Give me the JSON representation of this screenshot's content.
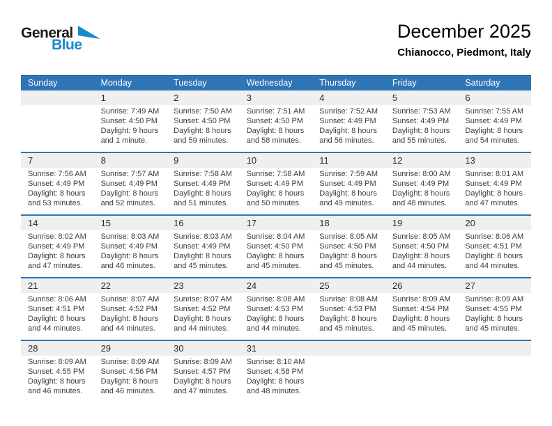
{
  "logo": {
    "general": "General",
    "blue": "Blue"
  },
  "header": {
    "title": "December 2025",
    "subtitle": "Chianocco, Piedmont, Italy"
  },
  "colors": {
    "header_blue": "#2E75B6",
    "separator_blue": "#2E75B6",
    "band_gray": "#EFEFEF",
    "logo_blue": "#1789CE"
  },
  "weekdays": [
    "Sunday",
    "Monday",
    "Tuesday",
    "Wednesday",
    "Thursday",
    "Friday",
    "Saturday"
  ],
  "weeks": [
    [
      {
        "day": "",
        "lines": []
      },
      {
        "day": "1",
        "lines": [
          "Sunrise: 7:49 AM",
          "Sunset: 4:50 PM",
          "Daylight: 9 hours and 1 minute."
        ]
      },
      {
        "day": "2",
        "lines": [
          "Sunrise: 7:50 AM",
          "Sunset: 4:50 PM",
          "Daylight: 8 hours and 59 minutes."
        ]
      },
      {
        "day": "3",
        "lines": [
          "Sunrise: 7:51 AM",
          "Sunset: 4:50 PM",
          "Daylight: 8 hours and 58 minutes."
        ]
      },
      {
        "day": "4",
        "lines": [
          "Sunrise: 7:52 AM",
          "Sunset: 4:49 PM",
          "Daylight: 8 hours and 56 minutes."
        ]
      },
      {
        "day": "5",
        "lines": [
          "Sunrise: 7:53 AM",
          "Sunset: 4:49 PM",
          "Daylight: 8 hours and 55 minutes."
        ]
      },
      {
        "day": "6",
        "lines": [
          "Sunrise: 7:55 AM",
          "Sunset: 4:49 PM",
          "Daylight: 8 hours and 54 minutes."
        ]
      }
    ],
    [
      {
        "day": "7",
        "lines": [
          "Sunrise: 7:56 AM",
          "Sunset: 4:49 PM",
          "Daylight: 8 hours and 53 minutes."
        ]
      },
      {
        "day": "8",
        "lines": [
          "Sunrise: 7:57 AM",
          "Sunset: 4:49 PM",
          "Daylight: 8 hours and 52 minutes."
        ]
      },
      {
        "day": "9",
        "lines": [
          "Sunrise: 7:58 AM",
          "Sunset: 4:49 PM",
          "Daylight: 8 hours and 51 minutes."
        ]
      },
      {
        "day": "10",
        "lines": [
          "Sunrise: 7:58 AM",
          "Sunset: 4:49 PM",
          "Daylight: 8 hours and 50 minutes."
        ]
      },
      {
        "day": "11",
        "lines": [
          "Sunrise: 7:59 AM",
          "Sunset: 4:49 PM",
          "Daylight: 8 hours and 49 minutes."
        ]
      },
      {
        "day": "12",
        "lines": [
          "Sunrise: 8:00 AM",
          "Sunset: 4:49 PM",
          "Daylight: 8 hours and 48 minutes."
        ]
      },
      {
        "day": "13",
        "lines": [
          "Sunrise: 8:01 AM",
          "Sunset: 4:49 PM",
          "Daylight: 8 hours and 47 minutes."
        ]
      }
    ],
    [
      {
        "day": "14",
        "lines": [
          "Sunrise: 8:02 AM",
          "Sunset: 4:49 PM",
          "Daylight: 8 hours and 47 minutes."
        ]
      },
      {
        "day": "15",
        "lines": [
          "Sunrise: 8:03 AM",
          "Sunset: 4:49 PM",
          "Daylight: 8 hours and 46 minutes."
        ]
      },
      {
        "day": "16",
        "lines": [
          "Sunrise: 8:03 AM",
          "Sunset: 4:49 PM",
          "Daylight: 8 hours and 45 minutes."
        ]
      },
      {
        "day": "17",
        "lines": [
          "Sunrise: 8:04 AM",
          "Sunset: 4:50 PM",
          "Daylight: 8 hours and 45 minutes."
        ]
      },
      {
        "day": "18",
        "lines": [
          "Sunrise: 8:05 AM",
          "Sunset: 4:50 PM",
          "Daylight: 8 hours and 45 minutes."
        ]
      },
      {
        "day": "19",
        "lines": [
          "Sunrise: 8:05 AM",
          "Sunset: 4:50 PM",
          "Daylight: 8 hours and 44 minutes."
        ]
      },
      {
        "day": "20",
        "lines": [
          "Sunrise: 8:06 AM",
          "Sunset: 4:51 PM",
          "Daylight: 8 hours and 44 minutes."
        ]
      }
    ],
    [
      {
        "day": "21",
        "lines": [
          "Sunrise: 8:06 AM",
          "Sunset: 4:51 PM",
          "Daylight: 8 hours and 44 minutes."
        ]
      },
      {
        "day": "22",
        "lines": [
          "Sunrise: 8:07 AM",
          "Sunset: 4:52 PM",
          "Daylight: 8 hours and 44 minutes."
        ]
      },
      {
        "day": "23",
        "lines": [
          "Sunrise: 8:07 AM",
          "Sunset: 4:52 PM",
          "Daylight: 8 hours and 44 minutes."
        ]
      },
      {
        "day": "24",
        "lines": [
          "Sunrise: 8:08 AM",
          "Sunset: 4:53 PM",
          "Daylight: 8 hours and 44 minutes."
        ]
      },
      {
        "day": "25",
        "lines": [
          "Sunrise: 8:08 AM",
          "Sunset: 4:53 PM",
          "Daylight: 8 hours and 45 minutes."
        ]
      },
      {
        "day": "26",
        "lines": [
          "Sunrise: 8:09 AM",
          "Sunset: 4:54 PM",
          "Daylight: 8 hours and 45 minutes."
        ]
      },
      {
        "day": "27",
        "lines": [
          "Sunrise: 8:09 AM",
          "Sunset: 4:55 PM",
          "Daylight: 8 hours and 45 minutes."
        ]
      }
    ],
    [
      {
        "day": "28",
        "lines": [
          "Sunrise: 8:09 AM",
          "Sunset: 4:55 PM",
          "Daylight: 8 hours and 46 minutes."
        ]
      },
      {
        "day": "29",
        "lines": [
          "Sunrise: 8:09 AM",
          "Sunset: 4:56 PM",
          "Daylight: 8 hours and 46 minutes."
        ]
      },
      {
        "day": "30",
        "lines": [
          "Sunrise: 8:09 AM",
          "Sunset: 4:57 PM",
          "Daylight: 8 hours and 47 minutes."
        ]
      },
      {
        "day": "31",
        "lines": [
          "Sunrise: 8:10 AM",
          "Sunset: 4:58 PM",
          "Daylight: 8 hours and 48 minutes."
        ]
      },
      {
        "day": "",
        "lines": []
      },
      {
        "day": "",
        "lines": []
      },
      {
        "day": "",
        "lines": []
      }
    ]
  ]
}
